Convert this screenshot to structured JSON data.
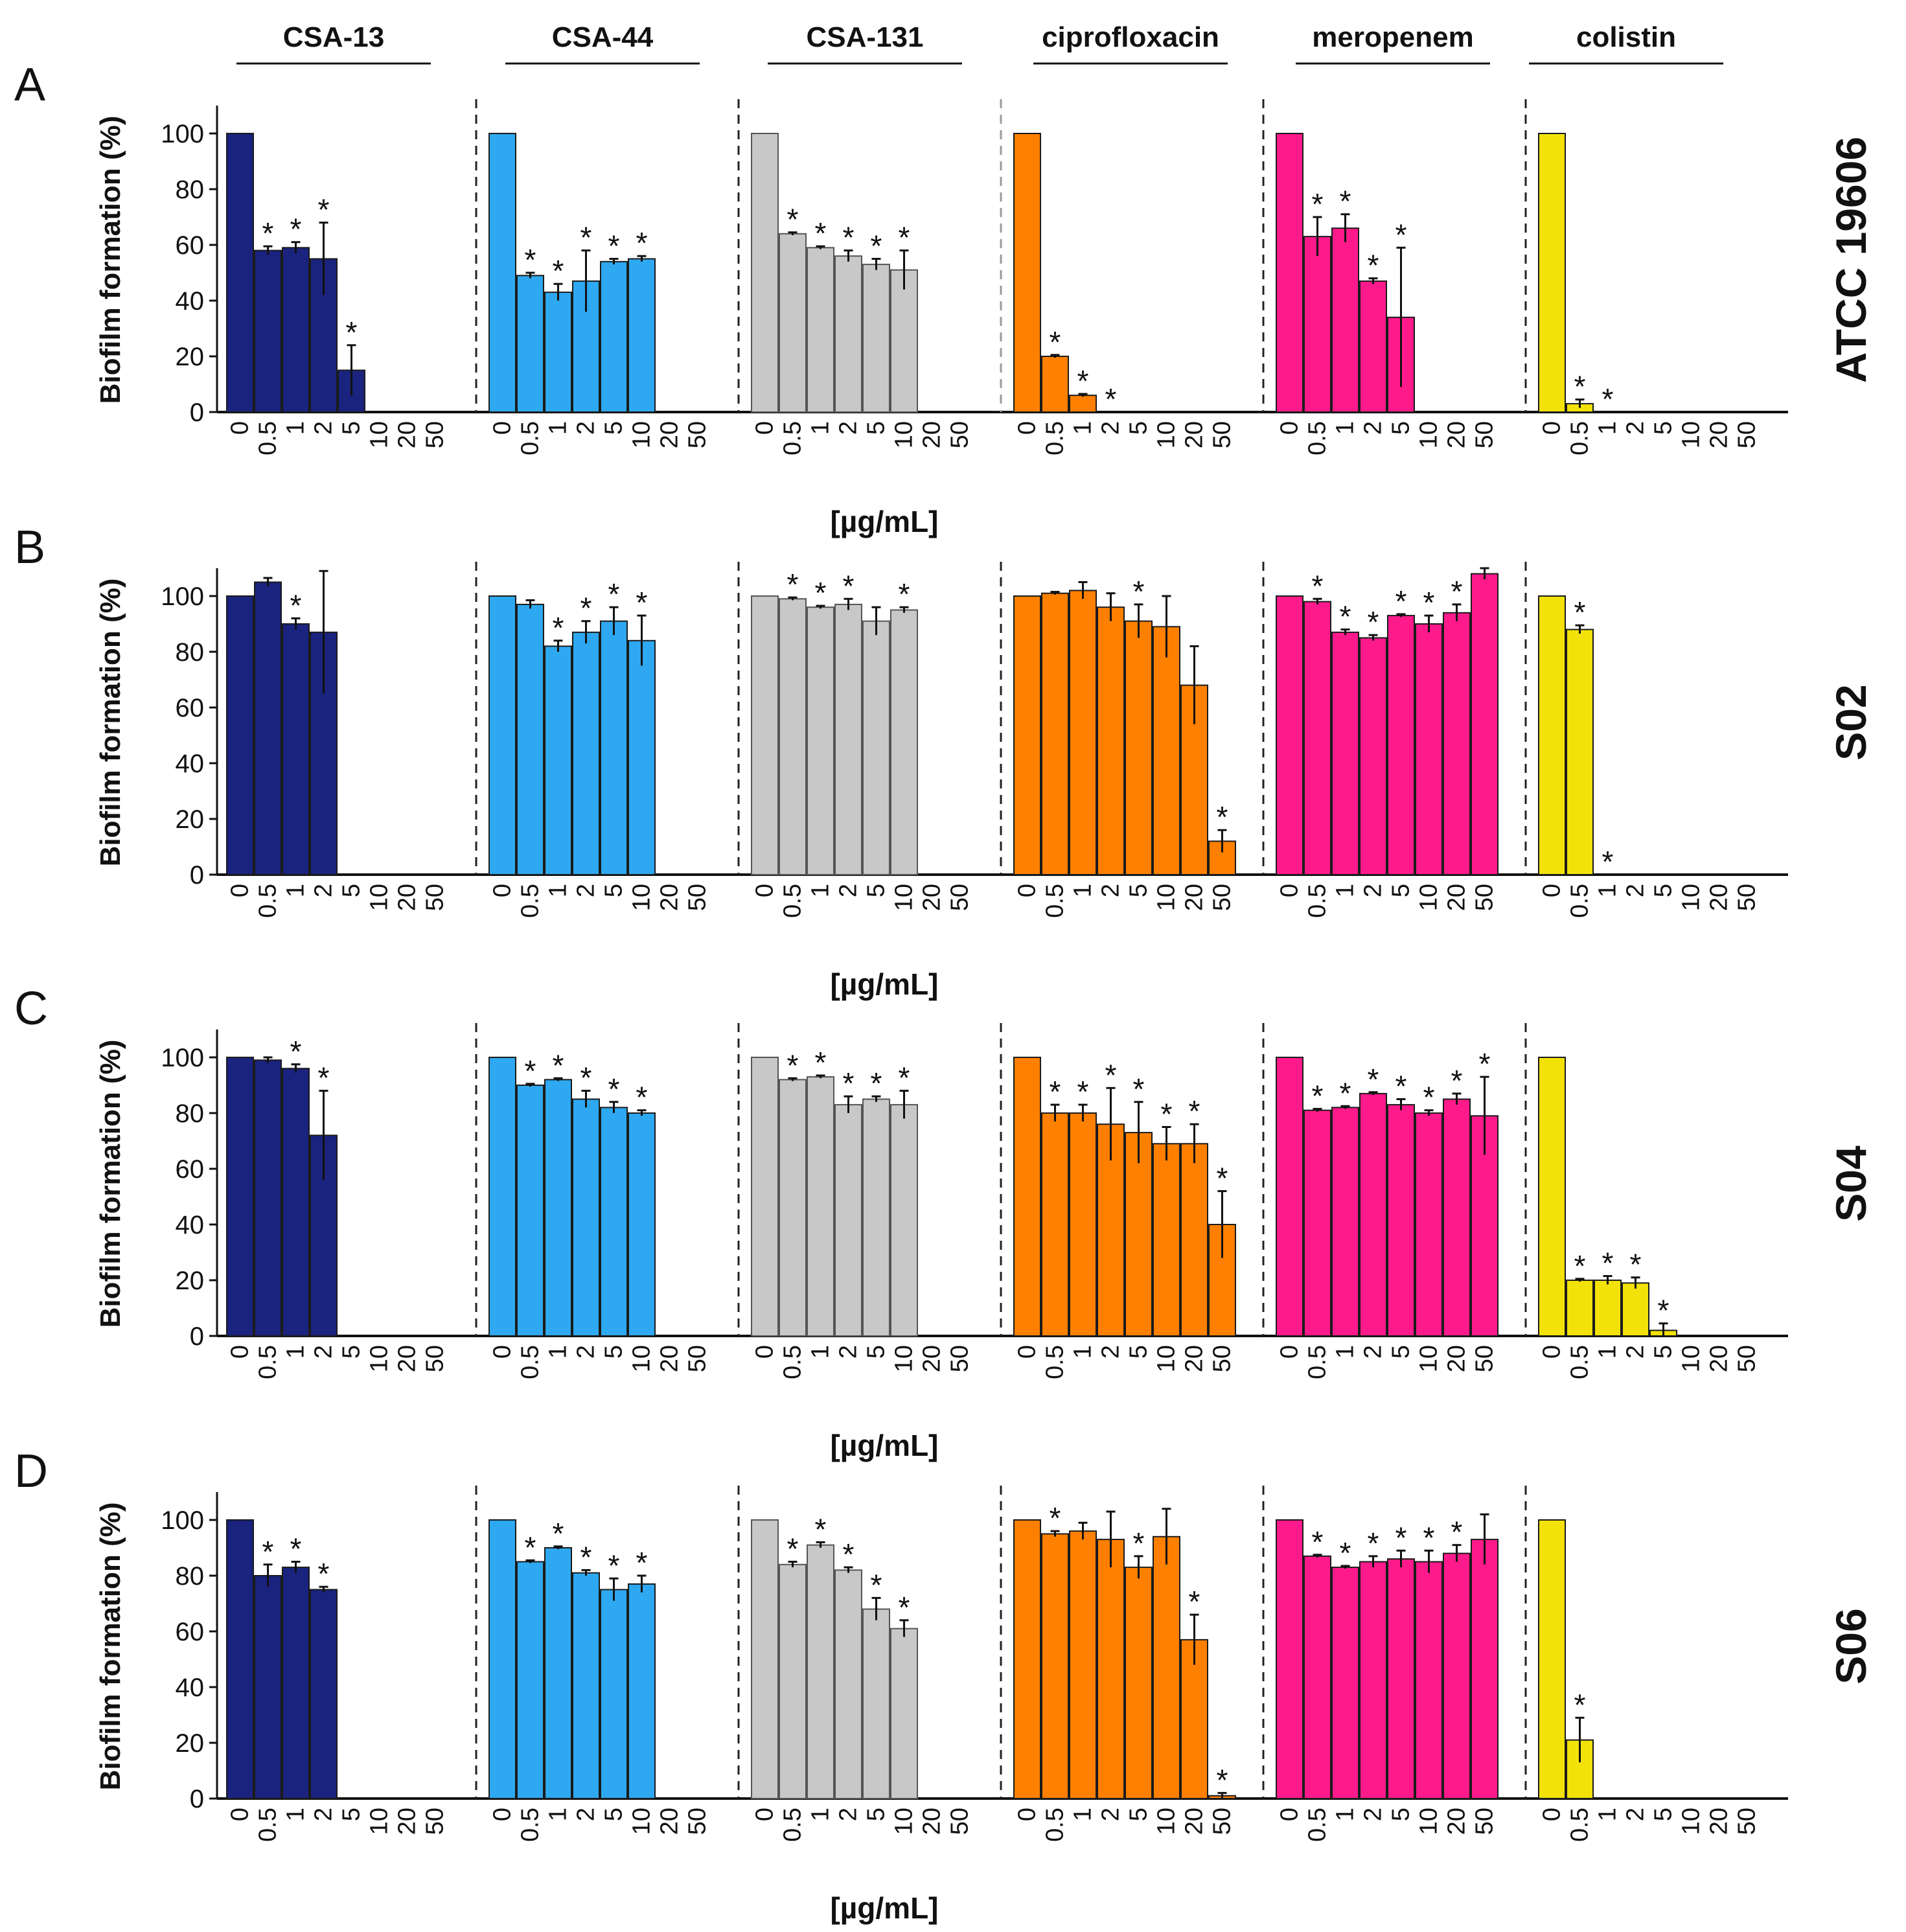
{
  "figure": {
    "headers": [
      "CSA-13",
      "CSA-44",
      "CSA-131",
      "ciprofloxacin",
      "meropenem",
      "colistin"
    ],
    "colors": [
      "#1a237e",
      "#2ea8f0",
      "#c8c8c8",
      "#ff8000",
      "#ff1a8c",
      "#f2e20a"
    ],
    "ylabel": "Biofilm formation (%)",
    "xlabel": "[µg/mL]",
    "y_ticks": [
      "0",
      "20",
      "40",
      "60",
      "80",
      "100"
    ],
    "x_ticks": [
      "0",
      "0.5",
      "1",
      "2",
      "5",
      "10",
      "20",
      "50"
    ],
    "significance_mark": "*"
  },
  "chart_data": [
    {
      "type": "bar",
      "panel": "A",
      "strain": "ATCC 19606",
      "xlabel": "[µg/mL]",
      "ylabel": "Biofilm formation (%)",
      "ylim": [
        0,
        110
      ],
      "categories": [
        "0",
        "0.5",
        "1",
        "2",
        "5",
        "10",
        "20",
        "50"
      ],
      "series": [
        {
          "name": "CSA-13",
          "values": [
            100,
            58,
            59,
            55,
            15,
            0,
            0,
            0
          ],
          "errors": [
            0,
            1.5,
            2,
            13,
            9,
            0,
            0,
            0
          ],
          "significant": [
            false,
            true,
            true,
            true,
            true,
            false,
            false,
            false
          ]
        },
        {
          "name": "CSA-44",
          "values": [
            100,
            49,
            43,
            47,
            54,
            55,
            0,
            0
          ],
          "errors": [
            0,
            1,
            3,
            11,
            1,
            1,
            0,
            0
          ],
          "significant": [
            false,
            true,
            true,
            true,
            true,
            true,
            false,
            false
          ]
        },
        {
          "name": "CSA-131",
          "values": [
            100,
            64,
            59,
            56,
            53,
            51,
            0,
            0
          ],
          "errors": [
            0,
            0.5,
            0.5,
            2,
            2,
            7,
            0,
            0
          ],
          "significant": [
            false,
            true,
            true,
            true,
            true,
            true,
            false,
            false
          ]
        },
        {
          "name": "ciprofloxacin",
          "values": [
            100,
            20,
            6,
            0,
            0,
            0,
            0,
            0
          ],
          "errors": [
            0,
            0.5,
            0.5,
            0,
            0,
            0,
            0,
            0
          ],
          "significant": [
            false,
            true,
            true,
            true,
            false,
            false,
            false,
            false
          ]
        },
        {
          "name": "meropenem",
          "values": [
            100,
            63,
            66,
            47,
            34,
            0,
            0,
            0
          ],
          "errors": [
            0,
            7,
            5,
            1,
            25,
            0,
            0,
            0
          ],
          "significant": [
            false,
            true,
            true,
            true,
            true,
            false,
            false,
            false
          ]
        },
        {
          "name": "colistin",
          "values": [
            100,
            3,
            0,
            0,
            0,
            0,
            0,
            0
          ],
          "errors": [
            0,
            1.5,
            0,
            0,
            0,
            0,
            0,
            0
          ],
          "significant": [
            false,
            true,
            true,
            false,
            false,
            false,
            false,
            false
          ]
        }
      ]
    },
    {
      "type": "bar",
      "panel": "B",
      "strain": "S02",
      "xlabel": "[µg/mL]",
      "ylabel": "Biofilm formation (%)",
      "ylim": [
        0,
        110
      ],
      "categories": [
        "0",
        "0.5",
        "1",
        "2",
        "5",
        "10",
        "20",
        "50"
      ],
      "series": [
        {
          "name": "CSA-13",
          "values": [
            100,
            105,
            90,
            87,
            0,
            0,
            0,
            0
          ],
          "errors": [
            0,
            1.5,
            2,
            22,
            0,
            0,
            0,
            0
          ],
          "significant": [
            false,
            false,
            true,
            false,
            false,
            false,
            false,
            false
          ]
        },
        {
          "name": "CSA-44",
          "values": [
            100,
            97,
            82,
            87,
            91,
            84,
            0,
            0
          ],
          "errors": [
            0,
            1.5,
            2,
            4,
            5,
            9,
            0,
            0
          ],
          "significant": [
            false,
            false,
            true,
            true,
            true,
            true,
            false,
            false
          ]
        },
        {
          "name": "CSA-131",
          "values": [
            100,
            99,
            96,
            97,
            91,
            95,
            0,
            0
          ],
          "errors": [
            0,
            0.5,
            0.5,
            2,
            5,
            1,
            0,
            0
          ],
          "significant": [
            false,
            true,
            true,
            true,
            false,
            true,
            false,
            false
          ]
        },
        {
          "name": "ciprofloxacin",
          "values": [
            100,
            101,
            102,
            96,
            91,
            89,
            68,
            12
          ],
          "errors": [
            0,
            0.5,
            3,
            5,
            6,
            11,
            14,
            4
          ],
          "significant": [
            false,
            false,
            false,
            false,
            true,
            false,
            false,
            true
          ]
        },
        {
          "name": "meropenem",
          "values": [
            100,
            98,
            87,
            85,
            93,
            90,
            94,
            108
          ],
          "errors": [
            0,
            1,
            1,
            1,
            0.5,
            3,
            3,
            2
          ],
          "significant": [
            false,
            true,
            true,
            true,
            true,
            true,
            true,
            false
          ]
        },
        {
          "name": "colistin",
          "values": [
            100,
            88,
            0,
            0,
            0,
            0,
            0,
            0
          ],
          "errors": [
            0,
            1.5,
            0,
            0,
            0,
            0,
            0,
            0
          ],
          "significant": [
            false,
            true,
            true,
            false,
            false,
            false,
            false,
            false
          ]
        }
      ]
    },
    {
      "type": "bar",
      "panel": "C",
      "strain": "S04",
      "xlabel": "[µg/mL]",
      "ylabel": "Biofilm formation (%)",
      "ylim": [
        0,
        110
      ],
      "categories": [
        "0",
        "0.5",
        "1",
        "2",
        "5",
        "10",
        "20",
        "50"
      ],
      "series": [
        {
          "name": "CSA-13",
          "values": [
            100,
            99,
            96,
            72,
            0,
            0,
            0,
            0
          ],
          "errors": [
            0,
            1,
            1.5,
            16,
            0,
            0,
            0,
            0
          ],
          "significant": [
            false,
            false,
            true,
            true,
            false,
            false,
            false,
            false
          ]
        },
        {
          "name": "CSA-44",
          "values": [
            100,
            90,
            92,
            85,
            82,
            80,
            0,
            0
          ],
          "errors": [
            0,
            0.5,
            0.5,
            3,
            2,
            1,
            0,
            0
          ],
          "significant": [
            false,
            true,
            true,
            true,
            true,
            true,
            false,
            false
          ]
        },
        {
          "name": "CSA-131",
          "values": [
            100,
            92,
            93,
            83,
            85,
            83,
            0,
            0
          ],
          "errors": [
            0,
            0.5,
            0.5,
            3,
            1,
            5,
            0,
            0
          ],
          "significant": [
            false,
            true,
            true,
            true,
            true,
            true,
            false,
            false
          ]
        },
        {
          "name": "ciprofloxacin",
          "values": [
            100,
            80,
            80,
            76,
            73,
            69,
            69,
            40
          ],
          "errors": [
            0,
            3,
            3,
            13,
            11,
            6,
            7,
            12
          ],
          "significant": [
            false,
            true,
            true,
            true,
            true,
            true,
            true,
            true
          ]
        },
        {
          "name": "meropenem",
          "values": [
            100,
            81,
            82,
            87,
            83,
            80,
            85,
            79
          ],
          "errors": [
            0,
            0.5,
            0.5,
            0.5,
            2,
            1,
            2,
            14
          ],
          "significant": [
            false,
            true,
            true,
            true,
            true,
            true,
            true,
            true
          ]
        },
        {
          "name": "colistin",
          "values": [
            100,
            20,
            20,
            19,
            2,
            0,
            0,
            0
          ],
          "errors": [
            0,
            0.5,
            1.5,
            2,
            2.5,
            0,
            0,
            0
          ],
          "significant": [
            false,
            true,
            true,
            true,
            true,
            false,
            false,
            false
          ]
        }
      ]
    },
    {
      "type": "bar",
      "panel": "D",
      "strain": "S06",
      "xlabel": "[µg/mL]",
      "ylabel": "Biofilm formation (%)",
      "ylim": [
        0,
        110
      ],
      "categories": [
        "0",
        "0.5",
        "1",
        "2",
        "5",
        "10",
        "20",
        "50"
      ],
      "series": [
        {
          "name": "CSA-13",
          "values": [
            100,
            80,
            83,
            75,
            0,
            0,
            0,
            0
          ],
          "errors": [
            0,
            4,
            2,
            1,
            0,
            0,
            0,
            0
          ],
          "significant": [
            false,
            true,
            true,
            true,
            false,
            false,
            false,
            false
          ]
        },
        {
          "name": "CSA-44",
          "values": [
            100,
            85,
            90,
            81,
            75,
            77,
            0,
            0
          ],
          "errors": [
            0,
            0.5,
            0.5,
            1,
            4,
            3,
            0,
            0
          ],
          "significant": [
            false,
            true,
            true,
            true,
            true,
            true,
            false,
            false
          ]
        },
        {
          "name": "CSA-131",
          "values": [
            100,
            84,
            91,
            82,
            68,
            61,
            0,
            0
          ],
          "errors": [
            0,
            1,
            1,
            1,
            4,
            3,
            0,
            0
          ],
          "significant": [
            false,
            true,
            true,
            true,
            true,
            true,
            false,
            false
          ]
        },
        {
          "name": "ciprofloxacin",
          "values": [
            100,
            95,
            96,
            93,
            83,
            94,
            57,
            1
          ],
          "errors": [
            0,
            1,
            3,
            10,
            4,
            10,
            9,
            1
          ],
          "significant": [
            false,
            true,
            false,
            false,
            true,
            false,
            true,
            true
          ]
        },
        {
          "name": "meropenem",
          "values": [
            100,
            87,
            83,
            85,
            86,
            85,
            88,
            93
          ],
          "errors": [
            0,
            0.5,
            0.5,
            2,
            3,
            4,
            3,
            9
          ],
          "significant": [
            false,
            true,
            true,
            true,
            true,
            true,
            true,
            false
          ]
        },
        {
          "name": "colistin",
          "values": [
            100,
            21,
            0,
            0,
            0,
            0,
            0,
            0
          ],
          "errors": [
            0,
            8,
            0,
            0,
            0,
            0,
            0,
            0
          ],
          "significant": [
            false,
            true,
            false,
            false,
            false,
            false,
            false,
            false
          ]
        }
      ]
    }
  ]
}
